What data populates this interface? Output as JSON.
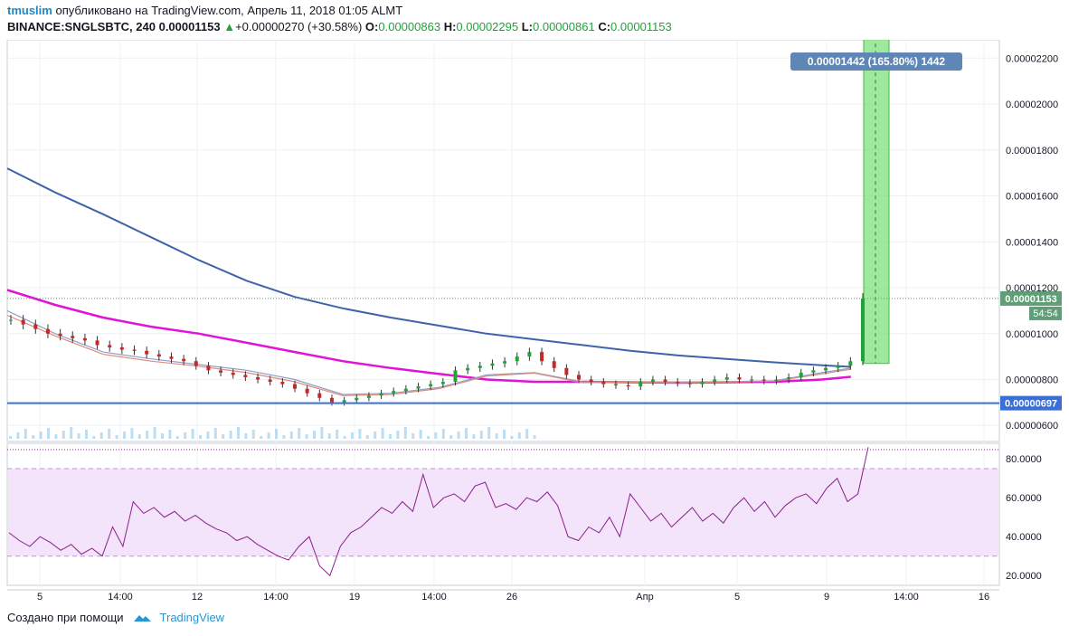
{
  "header": {
    "user": "tmuslim",
    "published_text": "опубликовано на TradingView.com, Апрель 11, 2018 01:05 ALMT",
    "symbol": "BINANCE:SNGLSBTC, 240",
    "price": "0.00001153",
    "change_arrow": "▲",
    "change": "+0.00000270 (+30.58%)",
    "o_label": "O:",
    "o_value": "0.00000863",
    "h_label": "H:",
    "h_value": "0.00002295",
    "l_label": "L:",
    "l_value": "0.00000861",
    "c_label": "C:",
    "c_value": "0.00001153"
  },
  "footer": {
    "created_with": "Создано при помощи",
    "brand": "TradingView",
    "logo_icon": "tradingview-cloud-icon"
  },
  "colors": {
    "up": "#23a13a",
    "down": "#c62828",
    "ma_long": "#3f63a8",
    "ma_mid": "#e013d6",
    "ma_short": "#8fa0c7",
    "ma_short2": "#e08a7a",
    "rsi": "#8b1e8b",
    "rsi_band": "#f3e3fb",
    "support": "#3a6fd8",
    "measure_fill": "#7ee27e",
    "price_tag": "#5f9e76",
    "measure_label": "#5f86b5"
  },
  "chart_data": {
    "type": "line",
    "title": "BINANCE:SNGLSBTC, 240",
    "x_ticks": [
      "5",
      "14:00",
      "12",
      "14:00",
      "19",
      "14:00",
      "26",
      "Апр",
      "5",
      "9",
      "14:00",
      "16"
    ],
    "price_axis": {
      "ticks": [
        "0.00002200",
        "0.00002000",
        "0.00001800",
        "0.00001600",
        "0.00001400",
        "0.00001200",
        "0.00001000",
        "0.00000800",
        "0.00000600"
      ],
      "ylim": [
        5.3e-06,
        2.28e-05
      ]
    },
    "rsi_axis": {
      "ticks": [
        "80.0000",
        "60.0000",
        "40.0000",
        "20.0000"
      ],
      "ylim": [
        15,
        88
      ],
      "band": [
        30,
        75
      ]
    },
    "last_price_label": "0.00001153",
    "countdown_label": "54:54",
    "support_label": "0.00000697",
    "support_value": 6.97e-06,
    "measure": {
      "label": "0.00001442 (165.80%) 1442",
      "from": 8.7e-06,
      "to": 2.295e-05
    },
    "series": [
      {
        "name": "",
        "key": "ma_long",
        "x": [
          0,
          10,
          20,
          30,
          40,
          50,
          60,
          70,
          80,
          90,
          100,
          110,
          120,
          130,
          140,
          150,
          160,
          170,
          176
        ],
        "values": [
          1.72e-05,
          1.615e-05,
          1.52e-05,
          1.42e-05,
          1.32e-05,
          1.23e-05,
          1.16e-05,
          1.11e-05,
          1.07e-05,
          1.035e-05,
          1e-05,
          9.75e-06,
          9.5e-06,
          9.25e-06,
          9.05e-06,
          8.9e-06,
          8.75e-06,
          8.62e-06,
          8.55e-06
        ]
      },
      {
        "name": "",
        "key": "ma_mid",
        "x": [
          0,
          10,
          20,
          30,
          40,
          50,
          60,
          70,
          80,
          90,
          100,
          110,
          120,
          130,
          140,
          150,
          160,
          170,
          176
        ],
        "values": [
          1.19e-05,
          1.125e-05,
          1.07e-05,
          1.03e-05,
          1e-05,
          9.6e-06,
          9.2e-06,
          8.8e-06,
          8.5e-06,
          8.25e-06,
          8e-06,
          7.9e-06,
          7.9e-06,
          7.88e-06,
          7.86e-06,
          7.88e-06,
          7.9e-06,
          8e-06,
          8.12e-06
        ]
      },
      {
        "name": "",
        "key": "ma_short",
        "x": [
          0,
          10,
          20,
          30,
          40,
          50,
          60,
          70,
          80,
          90,
          100,
          110,
          120,
          130,
          140,
          150,
          160,
          170,
          176
        ],
        "values": [
          1.1e-05,
          1e-05,
          9.2e-06,
          8.9e-06,
          8.65e-06,
          8.4e-06,
          8e-06,
          7.35e-06,
          7.4e-06,
          7.65e-06,
          8.2e-06,
          8.3e-06,
          7.9e-06,
          7.9e-06,
          7.88e-06,
          7.9e-06,
          7.95e-06,
          8.3e-06,
          8.5e-06
        ]
      },
      {
        "name": "",
        "key": "ma_short2",
        "x": [
          0,
          10,
          20,
          30,
          40,
          50,
          60,
          70,
          80,
          90,
          100,
          110,
          120,
          130,
          140,
          150,
          160,
          170,
          176
        ],
        "values": [
          1.08e-05,
          9.9e-06,
          9.1e-06,
          8.8e-06,
          8.58e-06,
          8.3e-06,
          7.9e-06,
          7.3e-06,
          7.35e-06,
          7.6e-06,
          8.15e-06,
          8.28e-06,
          7.86e-06,
          7.88e-06,
          7.86e-06,
          7.89e-06,
          7.93e-06,
          8.25e-06,
          8.45e-06
        ]
      }
    ],
    "candle_close": [
      1.06e-05,
      1.04e-05,
      1.02e-05,
      1e-05,
      9.9e-06,
      9.8e-06,
      9.7e-06,
      9.5e-06,
      9.4e-06,
      9.3e-06,
      9.25e-06,
      9.1e-06,
      9e-06,
      8.9e-06,
      8.8e-06,
      8.6e-06,
      8.4e-06,
      8.3e-06,
      8.2e-06,
      8.1e-06,
      8e-06,
      7.9e-06,
      7.8e-06,
      7.6e-06,
      7.4e-06,
      7.2e-06,
      7e-06,
      7.1e-06,
      7.2e-06,
      7.3e-06,
      7.4e-06,
      7.5e-06,
      7.6e-06,
      7.7e-06,
      7.8e-06,
      7.9e-06,
      8.4e-06,
      8.5e-06,
      8.6e-06,
      8.7e-06,
      8.8e-06,
      9e-06,
      9.2e-06,
      8.8e-06,
      8.5e-06,
      8.2e-06,
      8e-06,
      7.9e-06,
      7.8e-06,
      7.75e-06,
      7.7e-06,
      7.9e-06,
      8e-06,
      7.9e-06,
      7.85e-06,
      7.8e-06,
      7.9e-06,
      8e-06,
      8.1e-06,
      8e-06,
      8e-06,
      7.95e-06,
      8e-06,
      8.1e-06,
      8.3e-06,
      8.4e-06,
      8.5e-06,
      8.6e-06,
      8.8e-06,
      1.153e-05
    ],
    "rsi_values": [
      42,
      38,
      35,
      40,
      37,
      33,
      36,
      31,
      34,
      30,
      45,
      35,
      58,
      52,
      55,
      50,
      53,
      48,
      51,
      47,
      44,
      42,
      38,
      40,
      36,
      33,
      30,
      28,
      35,
      40,
      25,
      20,
      35,
      42,
      45,
      50,
      55,
      52,
      58,
      53,
      72,
      55,
      60,
      62,
      58,
      66,
      68,
      55,
      57,
      54,
      60,
      58,
      63,
      56,
      40,
      38,
      45,
      42,
      50,
      40,
      62,
      55,
      48,
      52,
      45,
      50,
      55,
      48,
      52,
      47,
      55,
      60,
      53,
      58,
      50,
      56,
      60,
      62,
      57,
      65,
      70,
      58,
      62,
      86
    ]
  }
}
